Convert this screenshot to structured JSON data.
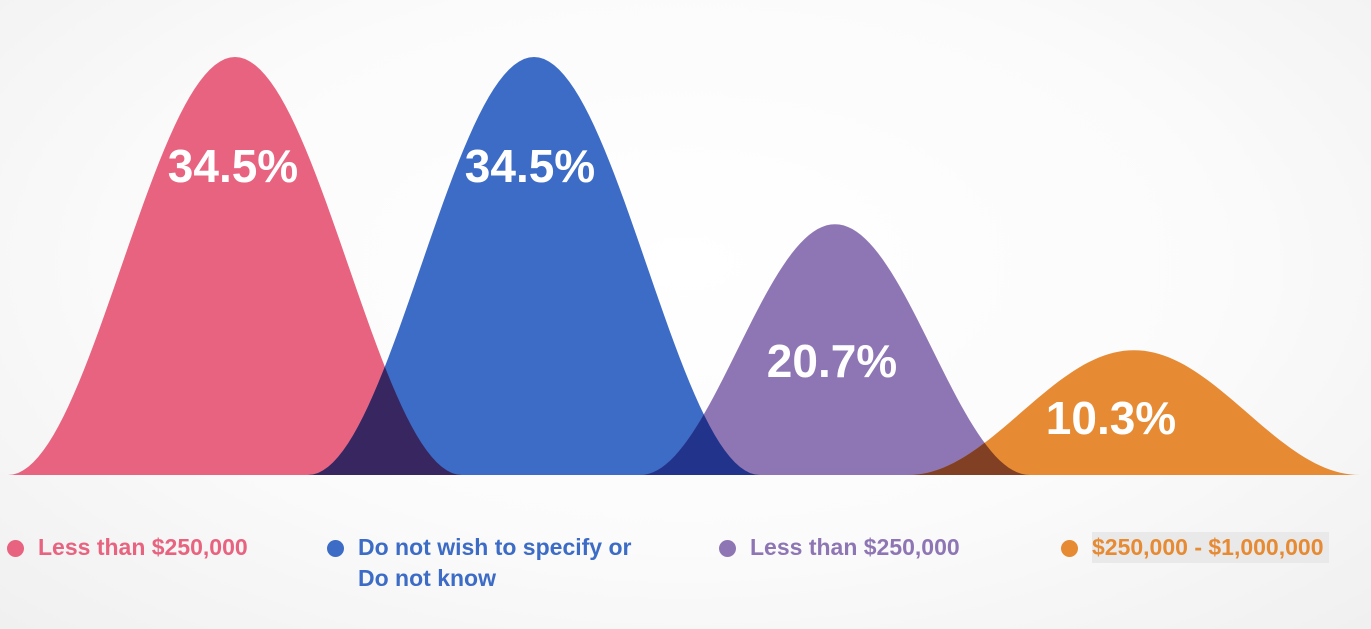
{
  "chart_data": {
    "type": "area",
    "series": [
      {
        "name": "Less than $250,000",
        "value": 34.5,
        "label": "34.5%",
        "color": "#e8637f"
      },
      {
        "name": "Do not wish to specify or\nDo not know",
        "value": 34.5,
        "label": "34.5%",
        "color": "#3d6cc6"
      },
      {
        "name": "Less than $250,000",
        "value": 20.7,
        "label": "20.7%",
        "color": "#8e76b4"
      },
      {
        "name": "$250,000 - $1,000,000",
        "value": 10.3,
        "label": "10.3%",
        "color": "#e68a33"
      }
    ],
    "overlap_colors": [
      "#372660",
      "#22338c",
      "#813f24"
    ],
    "legend_position": "bottom",
    "grid": false
  },
  "legend": {
    "items": [
      {
        "label_line1": "Less than $250,000",
        "label_line2": "",
        "color": "#e8637f"
      },
      {
        "label_line1": "Do not wish to specify or",
        "label_line2": "Do not know",
        "color": "#3d6cc6"
      },
      {
        "label_line1": "Less than $250,000",
        "label_line2": "",
        "color": "#8e76b4"
      },
      {
        "label_line1": "$250,000 - $1,000,000",
        "label_line2": "",
        "color": "#e68a33"
      }
    ]
  }
}
